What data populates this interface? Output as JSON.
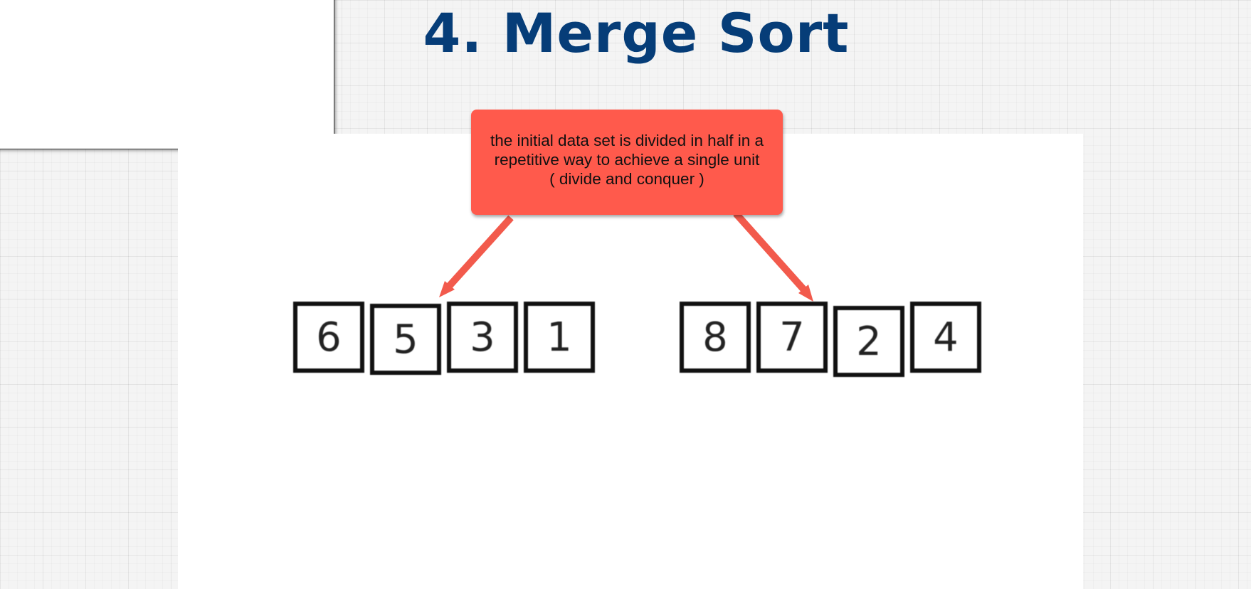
{
  "slide": {
    "title": "4. Merge Sort"
  },
  "callout": {
    "lines": [
      "the initial data set is divided in half in a",
      "repetitive way to achieve a single unit",
      "( divide and conquer )"
    ]
  },
  "arrays": {
    "left": [
      "6",
      "5",
      "3",
      "1"
    ],
    "right": [
      "8",
      "7",
      "2",
      "4"
    ]
  },
  "colors": {
    "title": "#063d78",
    "callout": "#ff5a4c",
    "arrow": "#f25a4c"
  }
}
